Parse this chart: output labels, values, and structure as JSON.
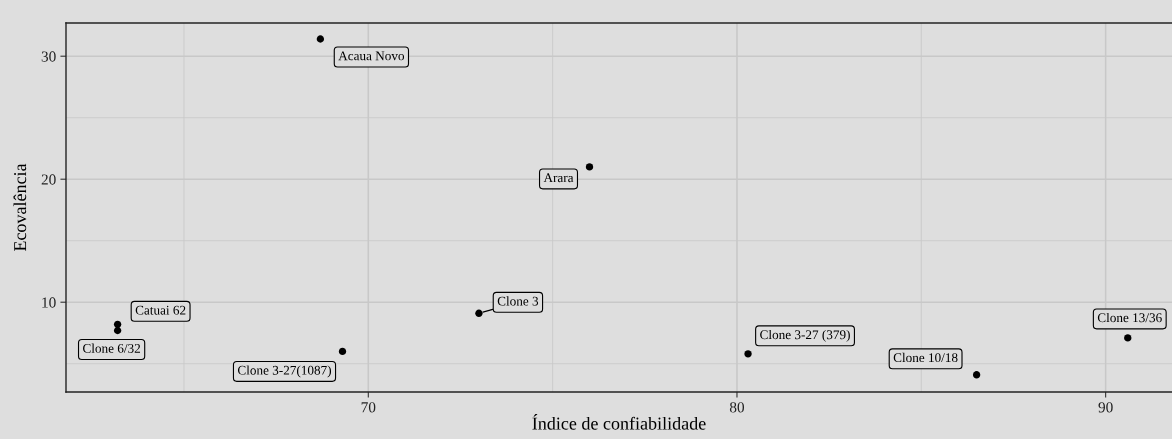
{
  "chart_data": {
    "type": "scatter",
    "xlabel": "Índice de confiabilidade",
    "ylabel": "Ecovalência",
    "series": [
      {
        "color": "#000000",
        "x": [
          68.7,
          76.0,
          63.2,
          63.2,
          69.3,
          73.0,
          80.3,
          86.5,
          90.6
        ],
        "values": [
          31.4,
          21.0,
          8.2,
          7.7,
          6.0,
          9.1,
          5.8,
          4.1,
          7.1
        ]
      }
    ],
    "annotations": [
      {
        "text": "Acaua Novo",
        "x": 68.7,
        "y": 31.4
      },
      {
        "text": "Arara",
        "x": 76.0,
        "y": 21.0
      },
      {
        "text": "Catuai 62",
        "x": 63.2,
        "y": 8.2
      },
      {
        "text": "Clone 6/32",
        "x": 63.2,
        "y": 7.7
      },
      {
        "text": "Clone 3-27(1087)",
        "x": 69.3,
        "y": 6.0
      },
      {
        "text": "Clone 3",
        "x": 73.0,
        "y": 9.1
      },
      {
        "text": "Clone 3-27 (379)",
        "x": 80.3,
        "y": 5.8
      },
      {
        "text": "Clone 10/18",
        "x": 86.5,
        "y": 4.1
      },
      {
        "text": "Clone 13/36",
        "x": 90.6,
        "y": 7.1
      }
    ],
    "xlim": [
      61.8,
      91.8
    ],
    "ylim": [
      2.7,
      32.7
    ],
    "xticks": [
      70,
      80,
      90
    ],
    "yticks": [
      10,
      20,
      30
    ],
    "grid": true,
    "marker": "circle"
  }
}
